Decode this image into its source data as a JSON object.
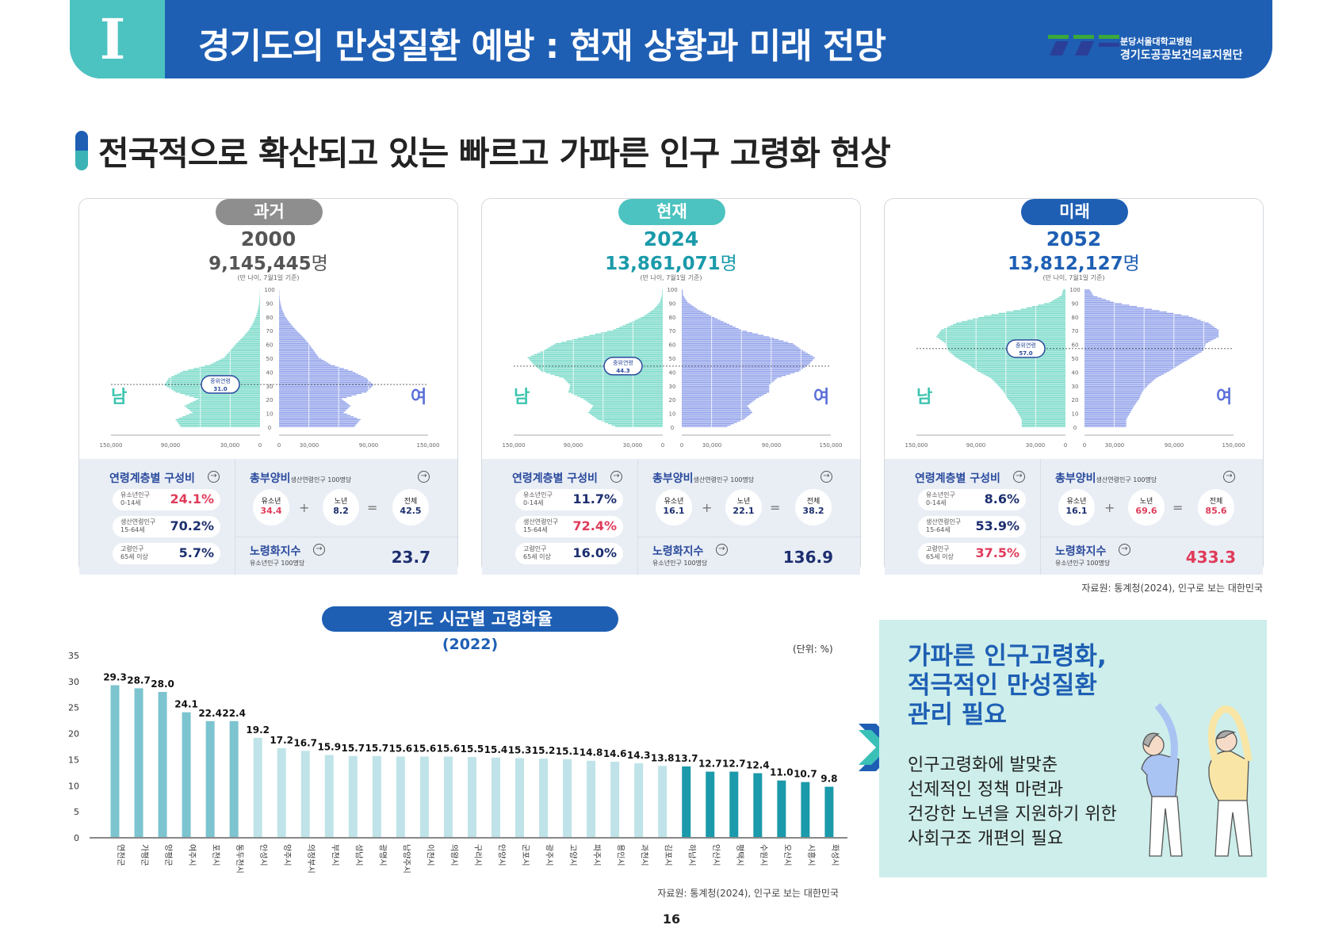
{
  "header": {
    "section": "I",
    "title": "경기도의 만성질환 예방 : 현재 상황과 미래 전망",
    "org_small": "분당서울대학교병원",
    "org_large": "경기도공공보건의료지원단"
  },
  "subtitle": "전국적으로 확산되고 있는 빠르고 가파른 인구 고령화 현상",
  "labels": {
    "male": "남",
    "female": "여",
    "median": "중위연령",
    "note": "(만 나이, 7월1일 기준)",
    "unit": "명",
    "comp_title": "연령계층별 구성비",
    "dep_title": "총부양비",
    "dep_sub": "생산연령인구 100명당",
    "youth": "유소년",
    "elder": "노년",
    "total": "전체",
    "aging_title": "노령화지수",
    "aging_sub": "유소년인구 100명당",
    "g1": "유소년인구\n0-14세",
    "g2": "생산연령인구\n15-64세",
    "g3": "고령인구\n65세 이상",
    "plus": "+",
    "eq": "=",
    "arrow": "→"
  },
  "colors": {
    "male": "#72d8c6",
    "female": "#8c9de9",
    "navy": "#1d2f6f",
    "red": "#e03b5a",
    "past": "#8e8e8e",
    "present": "#4cc3c0",
    "future": "#1e5fb4"
  },
  "panels": [
    {
      "badge": "과거",
      "year": "2000",
      "count": "9,145,445",
      "median": 31.0,
      "median_label": "31.0",
      "youth_pct": "24.1%",
      "working_pct": "70.2%",
      "elderly_pct": "5.7%",
      "highlight": "youth",
      "dep_youth": "34.4",
      "dep_elder": "8.2",
      "dep_total": "42.5",
      "aging_index": "23.7",
      "dep_red": "youth",
      "aging_red": false
    },
    {
      "badge": "현재",
      "year": "2024",
      "count": "13,861,071",
      "median": 44.3,
      "median_label": "44.3",
      "youth_pct": "11.7%",
      "working_pct": "72.4%",
      "elderly_pct": "16.0%",
      "highlight": "working",
      "dep_youth": "16.1",
      "dep_elder": "22.1",
      "dep_total": "38.2",
      "aging_index": "136.9",
      "dep_red": "none",
      "aging_red": false
    },
    {
      "badge": "미래",
      "year": "2052",
      "count": "13,812,127",
      "median": 57.0,
      "median_label": "57.0",
      "youth_pct": "8.6%",
      "working_pct": "53.9%",
      "elderly_pct": "37.5%",
      "highlight": "elderly",
      "dep_youth": "16.1",
      "dep_elder": "69.6",
      "dep_total": "85.6",
      "aging_index": "433.3",
      "dep_red": "elder",
      "aging_red": true
    }
  ],
  "source": "자료원:  통계청(2024), 인구로 보는 대한민국",
  "chart_data": [
    {
      "type": "bar",
      "title": "경기도 시군별 고령화율",
      "subtitle": "(2022)",
      "unit_label": "(단위: %)",
      "ylim": [
        0,
        35
      ],
      "yticks": [
        0,
        5,
        10,
        15,
        20,
        25,
        30,
        35
      ],
      "categories": [
        "연천군",
        "가평군",
        "양평군",
        "여주시",
        "포천시",
        "동두천시",
        "안성시",
        "양주시",
        "의정부시",
        "부천시",
        "성남시",
        "광명시",
        "남양주시",
        "이천시",
        "의왕시",
        "구리시",
        "안양시",
        "군포시",
        "광주시",
        "고양시",
        "파주시",
        "용인시",
        "과천시",
        "김포시",
        "하남시",
        "안산시",
        "평택시",
        "수원시",
        "오산시",
        "시흥시",
        "화성시"
      ],
      "values": [
        29.3,
        28.7,
        28.0,
        24.1,
        22.4,
        22.4,
        19.2,
        17.2,
        16.7,
        15.9,
        15.7,
        15.7,
        15.6,
        15.6,
        15.6,
        15.5,
        15.4,
        15.3,
        15.2,
        15.1,
        14.8,
        14.6,
        14.3,
        13.8,
        13.7,
        12.7,
        12.7,
        12.4,
        11.0,
        10.7,
        9.8
      ],
      "groups": [
        "mid",
        "mid",
        "mid",
        "mid",
        "mid",
        "mid",
        "light",
        "light",
        "light",
        "light",
        "light",
        "light",
        "light",
        "light",
        "light",
        "light",
        "light",
        "light",
        "light",
        "light",
        "light",
        "light",
        "light",
        "light",
        "dark",
        "dark",
        "dark",
        "dark",
        "dark",
        "dark",
        "dark"
      ],
      "group_colors": {
        "mid": "#7cc4cf",
        "light": "#bfe3e8",
        "dark": "#1a9aaa"
      }
    },
    {
      "type": "population-pyramid",
      "year": "2000",
      "age_bands": [
        "0-4",
        "5-9",
        "10-14",
        "15-19",
        "20-24",
        "25-29",
        "30-34",
        "35-39",
        "40-44",
        "45-49",
        "50-54",
        "55-59",
        "60-64",
        "65-69",
        "70-74",
        "75-79",
        "80-84",
        "85-89",
        "90-94",
        "95-99"
      ],
      "male": [
        80000,
        85000,
        68000,
        76000,
        62000,
        85000,
        96000,
        92000,
        78000,
        50000,
        36000,
        30000,
        24000,
        17000,
        11000,
        7000,
        4000,
        2000,
        800,
        300
      ],
      "female": [
        76000,
        82000,
        65000,
        72000,
        63000,
        88000,
        95000,
        88000,
        74000,
        52000,
        40000,
        35000,
        30000,
        24000,
        17000,
        11000,
        6000,
        3000,
        1200,
        400
      ],
      "xticks": [
        "150,000",
        "90,000",
        "30,000",
        "0",
        "0",
        "30,000",
        "90,000",
        "150,000"
      ],
      "age_ticks": [
        0,
        10,
        20,
        30,
        40,
        50,
        60,
        70,
        80,
        90,
        100
      ]
    },
    {
      "type": "population-pyramid",
      "year": "2024",
      "age_bands": [
        "0-4",
        "5-9",
        "10-14",
        "15-19",
        "20-24",
        "25-29",
        "30-34",
        "35-39",
        "40-44",
        "45-49",
        "50-54",
        "55-59",
        "60-64",
        "65-69",
        "70-74",
        "75-79",
        "80-84",
        "85-89",
        "90-94",
        "95-99"
      ],
      "male": [
        48000,
        65000,
        75000,
        70000,
        80000,
        95000,
        93000,
        100000,
        122000,
        130000,
        136000,
        120000,
        108000,
        80000,
        50000,
        34000,
        19000,
        9000,
        3000,
        800
      ],
      "female": [
        46000,
        62000,
        71000,
        66000,
        75000,
        88000,
        88000,
        96000,
        118000,
        128000,
        134000,
        122000,
        112000,
        88000,
        60000,
        45000,
        30000,
        16000,
        6000,
        1500
      ],
      "xticks": [
        "150,000",
        "90,000",
        "30,000",
        "0",
        "0",
        "30,000",
        "90,000",
        "150,000"
      ],
      "age_ticks": [
        0,
        10,
        20,
        30,
        40,
        50,
        60,
        70,
        80,
        90,
        100
      ]
    },
    {
      "type": "population-pyramid",
      "year": "2052",
      "age_bands": [
        "0-4",
        "5-9",
        "10-14",
        "15-19",
        "20-24",
        "25-29",
        "30-34",
        "35-39",
        "40-44",
        "45-49",
        "50-54",
        "55-59",
        "60-64",
        "65-69",
        "70-74",
        "75-79",
        "80-84",
        "85-89",
        "90-94",
        "95-99"
      ],
      "male": [
        44000,
        44000,
        48000,
        52000,
        58000,
        62000,
        68000,
        75000,
        88000,
        98000,
        110000,
        118000,
        120000,
        130000,
        125000,
        110000,
        82000,
        45000,
        16000,
        4000
      ],
      "female": [
        42000,
        42000,
        46000,
        50000,
        55000,
        58000,
        64000,
        72000,
        85000,
        96000,
        108000,
        120000,
        122000,
        135000,
        135000,
        125000,
        105000,
        68000,
        30000,
        9000
      ],
      "xticks": [
        "150,000",
        "90,000",
        "30,000",
        "0",
        "0",
        "30,000",
        "90,000",
        "150,000"
      ],
      "age_ticks": [
        0,
        10,
        20,
        30,
        40,
        50,
        60,
        70,
        80,
        90,
        100
      ]
    }
  ],
  "chart_source": "자료원:  통계청(2024), 인구로 보는 대한민국",
  "page_number": "16",
  "box": {
    "heading": "가파른 인구고령화,\n적극적인 만성질환\n관리 필요",
    "body": "인구고령화에 발맞춘\n선제적인 정책 마련과\n건강한 노년을 지원하기 위한\n사회구조 개편의 필요"
  }
}
